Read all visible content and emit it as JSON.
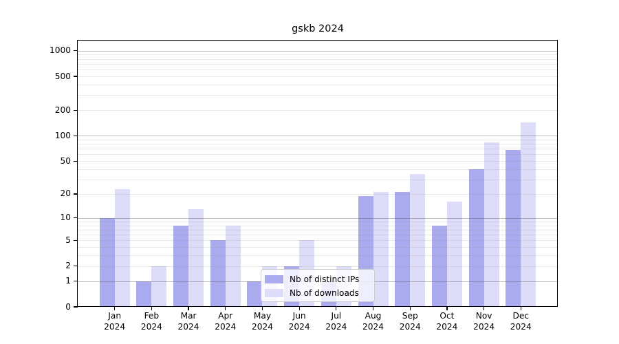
{
  "title": "gskb 2024",
  "chart_data": {
    "type": "bar",
    "title": "gskb 2024",
    "categories": [
      "Jan 2024",
      "Feb 2024",
      "Mar 2024",
      "Apr 2024",
      "May 2024",
      "Jun 2024",
      "Jul 2024",
      "Aug 2024",
      "Sep 2024",
      "Oct 2024",
      "Nov 2024",
      "Dec 2024"
    ],
    "months": [
      "Jan",
      "Feb",
      "Mar",
      "Apr",
      "May",
      "Jun",
      "Jul",
      "Aug",
      "Sep",
      "Oct",
      "Nov",
      "Dec"
    ],
    "year": "2024",
    "series": [
      {
        "name": "Nb of distinct IPs",
        "color": "#aaaaee",
        "values": [
          10,
          1,
          8,
          5,
          1,
          2,
          1,
          19,
          21,
          8,
          40,
          68
        ]
      },
      {
        "name": "Nb of downloads",
        "color": "#ddddfa",
        "values": [
          23,
          2,
          13,
          8,
          2,
          5,
          2,
          21,
          35,
          16,
          83,
          143
        ]
      }
    ],
    "y_axis": {
      "scale": "log10(1+y)",
      "ticks": [
        0,
        1,
        2,
        5,
        10,
        20,
        50,
        100,
        200,
        500,
        1000
      ],
      "range": [
        0,
        1315
      ]
    },
    "grid": {
      "major_at": [
        1,
        10,
        100,
        1000
      ],
      "minor_at": [
        2,
        3,
        4,
        5,
        6,
        7,
        8,
        9,
        20,
        30,
        40,
        50,
        60,
        70,
        80,
        90,
        200,
        300,
        400,
        500,
        600,
        700,
        800,
        900
      ],
      "orientation": "horizontal"
    },
    "legend_position": "lower center",
    "xlabel": "",
    "ylabel": ""
  }
}
